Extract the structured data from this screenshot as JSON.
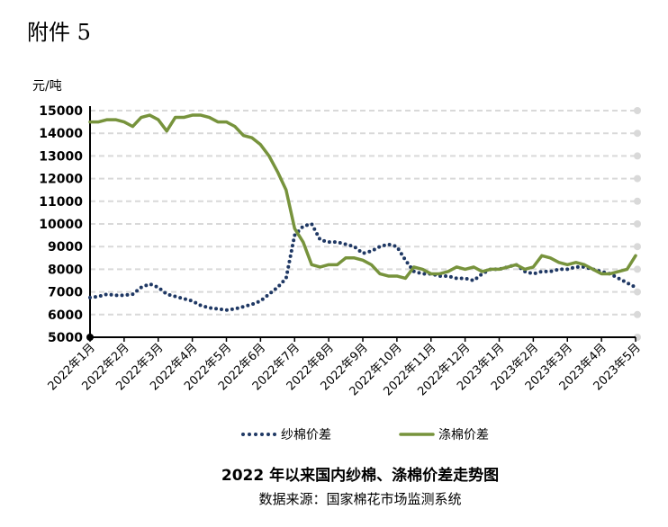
{
  "heading": "附件 5",
  "chart_data": {
    "type": "line",
    "title": "2022 年以来国内纱棉、涤棉价差走势图",
    "source": "数据来源：国家棉花市场监测系统",
    "y_label": "元/吨",
    "categories": [
      "2022年1月",
      null,
      null,
      null,
      "2022年2月",
      null,
      null,
      null,
      "2022年3月",
      null,
      null,
      null,
      "2022年4月",
      null,
      null,
      null,
      "2022年5月",
      null,
      null,
      null,
      "2022年6月",
      null,
      null,
      null,
      "2022年7月",
      null,
      null,
      null,
      "2022年8月",
      null,
      null,
      null,
      "2022年9月",
      null,
      null,
      null,
      "2022年10月",
      null,
      null,
      null,
      "2022年11月",
      null,
      null,
      null,
      "2022年12月",
      null,
      null,
      null,
      "2023年1月",
      null,
      null,
      null,
      "2023年2月",
      null,
      null,
      null,
      "2023年3月",
      null,
      null,
      null,
      "2023年4月",
      null,
      null,
      null,
      "2023年5月"
    ],
    "series": [
      {
        "name": "纱棉价差",
        "color": "#1f3864",
        "style": "dotted",
        "values": [
          6750,
          6800,
          6900,
          6850,
          6850,
          6900,
          7200,
          7350,
          7200,
          6900,
          6800,
          6700,
          6600,
          6400,
          6300,
          6250,
          6200,
          6250,
          6350,
          6450,
          6600,
          6900,
          7200,
          7600,
          9500,
          9900,
          10000,
          9300,
          9200,
          9200,
          9100,
          9000,
          8700,
          8800,
          9000,
          9100,
          9000,
          8400,
          7900,
          7800,
          7800,
          7700,
          7700,
          7600,
          7600,
          7500,
          7800,
          8000,
          8000,
          8100,
          8200,
          7900,
          7800,
          7900,
          7900,
          8000,
          8000,
          8100,
          8100,
          8000,
          7900,
          7800,
          7600,
          7400,
          7200
        ]
      },
      {
        "name": "涤棉价差",
        "color": "#77933c",
        "style": "solid",
        "values": [
          14500,
          14500,
          14600,
          14600,
          14500,
          14300,
          14700,
          14800,
          14600,
          14100,
          14700,
          14700,
          14800,
          14800,
          14700,
          14500,
          14500,
          14300,
          13900,
          13800,
          13500,
          13000,
          12300,
          11500,
          9800,
          9200,
          8200,
          8100,
          8200,
          8200,
          8500,
          8500,
          8400,
          8200,
          7800,
          7700,
          7700,
          7600,
          8100,
          8000,
          7800,
          7800,
          7900,
          8100,
          8000,
          8100,
          7900,
          8000,
          8000,
          8100,
          8200,
          8000,
          8100,
          8600,
          8500,
          8300,
          8200,
          8300,
          8200,
          8000,
          7800,
          7800,
          7900,
          8000,
          8600
        ]
      }
    ],
    "ylim": [
      5000,
      15000
    ],
    "yticks": [
      5000,
      6000,
      7000,
      8000,
      9000,
      10000,
      11000,
      12000,
      13000,
      14000,
      15000
    ],
    "grid": true
  }
}
